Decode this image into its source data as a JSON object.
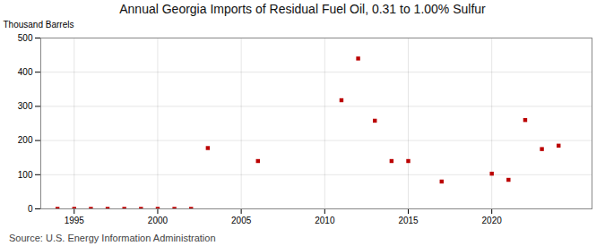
{
  "chart_data": {
    "type": "scatter",
    "title": "Annual Georgia Imports of Residual Fuel Oil, 0.31 to 1.00% Sulfur",
    "ylabel": "Thousand Barrels",
    "source": "Source: U.S. Energy Information Administration",
    "x": [
      1994,
      1995,
      1996,
      1997,
      1998,
      1999,
      2000,
      2001,
      2002,
      2003,
      2006,
      2011,
      2012,
      2013,
      2014,
      2015,
      2017,
      2020,
      2021,
      2022,
      2023,
      2024
    ],
    "values": [
      0,
      0,
      0,
      0,
      0,
      0,
      0,
      0,
      0,
      178,
      140,
      318,
      440,
      258,
      140,
      140,
      80,
      103,
      85,
      260,
      175,
      185
    ],
    "color": "#bb0000",
    "marker": "square",
    "xlim": [
      1993,
      2026
    ],
    "ylim": [
      0,
      500
    ],
    "xticks": [
      1995,
      2000,
      2005,
      2010,
      2015,
      2020
    ],
    "yticks": [
      0,
      100,
      200,
      300,
      400,
      500
    ],
    "grid": true
  }
}
